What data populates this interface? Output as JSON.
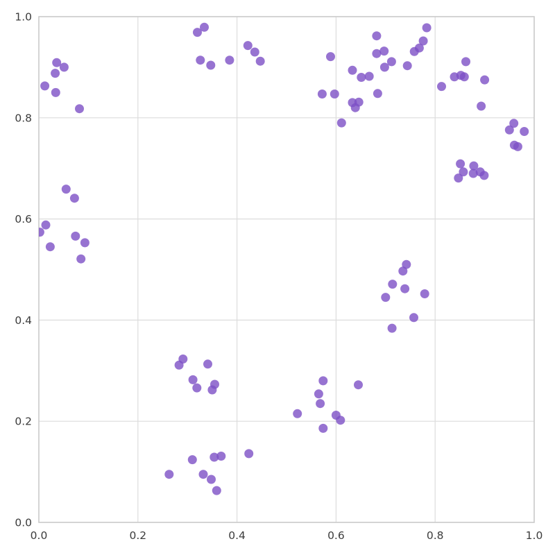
{
  "chart_data": {
    "type": "scatter",
    "title": "",
    "xlabel": "",
    "ylabel": "",
    "xlim": [
      0.0,
      1.0
    ],
    "ylim": [
      0.0,
      1.0
    ],
    "x_ticks": [
      0.0,
      0.2,
      0.4,
      0.6,
      0.8,
      1.0
    ],
    "y_ticks": [
      0.0,
      0.2,
      0.4,
      0.6,
      0.8,
      1.0
    ],
    "x_tick_labels": [
      "0.0",
      "0.2",
      "0.4",
      "0.6",
      "0.8",
      "1.0"
    ],
    "y_tick_labels": [
      "0.0",
      "0.2",
      "0.4",
      "0.6",
      "0.8",
      "1.0"
    ],
    "grid": true,
    "legend": false,
    "series_name": "points",
    "style": {
      "marker_color": "#7d50c5",
      "marker_opacity": 0.8,
      "marker_radius_px": 6.5,
      "grid_color": "#dcdcdc",
      "spine_color": "#cbcbcb",
      "tick_label_color": "#3c3c3c",
      "background": "#ffffff"
    },
    "points": [
      [
        0.036,
        0.909
      ],
      [
        0.051,
        0.9
      ],
      [
        0.033,
        0.888
      ],
      [
        0.012,
        0.863
      ],
      [
        0.034,
        0.85
      ],
      [
        0.082,
        0.818
      ],
      [
        0.055,
        0.659
      ],
      [
        0.072,
        0.641
      ],
      [
        0.014,
        0.588
      ],
      [
        0.002,
        0.574
      ],
      [
        0.023,
        0.545
      ],
      [
        0.074,
        0.566
      ],
      [
        0.093,
        0.553
      ],
      [
        0.085,
        0.521
      ],
      [
        0.32,
        0.969
      ],
      [
        0.334,
        0.979
      ],
      [
        0.326,
        0.914
      ],
      [
        0.347,
        0.904
      ],
      [
        0.385,
        0.914
      ],
      [
        0.422,
        0.943
      ],
      [
        0.436,
        0.93
      ],
      [
        0.447,
        0.912
      ],
      [
        0.783,
        0.978
      ],
      [
        0.776,
        0.952
      ],
      [
        0.768,
        0.938
      ],
      [
        0.758,
        0.931
      ],
      [
        0.682,
        0.962
      ],
      [
        0.697,
        0.932
      ],
      [
        0.682,
        0.927
      ],
      [
        0.589,
        0.921
      ],
      [
        0.712,
        0.911
      ],
      [
        0.698,
        0.9
      ],
      [
        0.744,
        0.903
      ],
      [
        0.633,
        0.894
      ],
      [
        0.651,
        0.88
      ],
      [
        0.667,
        0.882
      ],
      [
        0.572,
        0.847
      ],
      [
        0.597,
        0.847
      ],
      [
        0.684,
        0.848
      ],
      [
        0.633,
        0.83
      ],
      [
        0.646,
        0.831
      ],
      [
        0.639,
        0.82
      ],
      [
        0.611,
        0.79
      ],
      [
        0.862,
        0.911
      ],
      [
        0.839,
        0.881
      ],
      [
        0.852,
        0.884
      ],
      [
        0.859,
        0.881
      ],
      [
        0.9,
        0.875
      ],
      [
        0.813,
        0.862
      ],
      [
        0.893,
        0.823
      ],
      [
        0.959,
        0.789
      ],
      [
        0.95,
        0.776
      ],
      [
        0.98,
        0.773
      ],
      [
        0.96,
        0.746
      ],
      [
        0.967,
        0.743
      ],
      [
        0.851,
        0.709
      ],
      [
        0.878,
        0.705
      ],
      [
        0.857,
        0.693
      ],
      [
        0.877,
        0.69
      ],
      [
        0.891,
        0.693
      ],
      [
        0.899,
        0.686
      ],
      [
        0.847,
        0.681
      ],
      [
        0.742,
        0.51
      ],
      [
        0.735,
        0.497
      ],
      [
        0.714,
        0.471
      ],
      [
        0.739,
        0.462
      ],
      [
        0.779,
        0.452
      ],
      [
        0.7,
        0.445
      ],
      [
        0.757,
        0.405
      ],
      [
        0.713,
        0.384
      ],
      [
        0.574,
        0.28
      ],
      [
        0.645,
        0.272
      ],
      [
        0.565,
        0.254
      ],
      [
        0.568,
        0.235
      ],
      [
        0.522,
        0.215
      ],
      [
        0.6,
        0.212
      ],
      [
        0.609,
        0.202
      ],
      [
        0.574,
        0.186
      ],
      [
        0.291,
        0.323
      ],
      [
        0.283,
        0.311
      ],
      [
        0.341,
        0.313
      ],
      [
        0.311,
        0.282
      ],
      [
        0.319,
        0.266
      ],
      [
        0.355,
        0.273
      ],
      [
        0.35,
        0.262
      ],
      [
        0.31,
        0.124
      ],
      [
        0.354,
        0.129
      ],
      [
        0.368,
        0.131
      ],
      [
        0.424,
        0.136
      ],
      [
        0.263,
        0.095
      ],
      [
        0.332,
        0.095
      ],
      [
        0.348,
        0.085
      ],
      [
        0.359,
        0.063
      ]
    ]
  }
}
